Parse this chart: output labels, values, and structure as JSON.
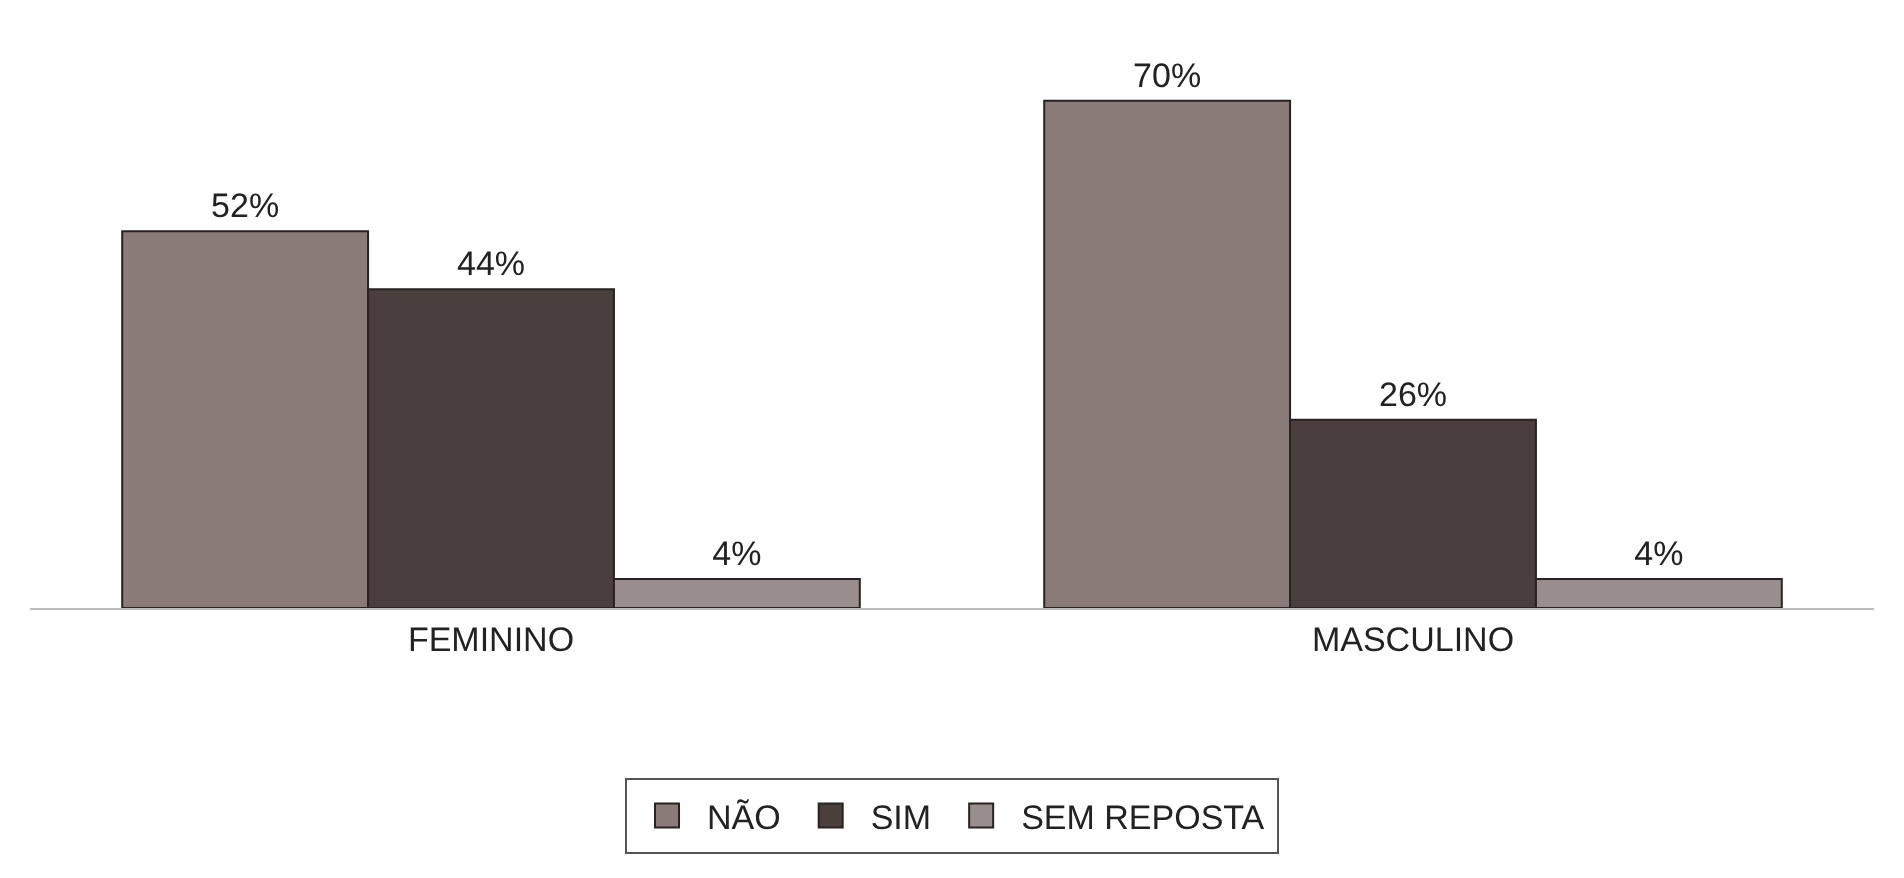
{
  "chart_data": {
    "type": "bar",
    "categories": [
      "FEMININO",
      "MASCULINO"
    ],
    "series": [
      {
        "name": "NÃO",
        "color": "#8a7b78",
        "values": [
          52,
          70
        ],
        "value_labels": [
          "52%",
          "70%"
        ]
      },
      {
        "name": "SIM",
        "color": "#4a3f3d",
        "values": [
          44,
          26
        ],
        "value_labels": [
          "44%",
          "26%"
        ]
      },
      {
        "name": "SEM REPOSTA",
        "color": "#9a8e8c",
        "values": [
          4,
          4
        ],
        "value_labels": [
          "4%",
          "4%"
        ]
      }
    ],
    "legend": "bottom"
  }
}
